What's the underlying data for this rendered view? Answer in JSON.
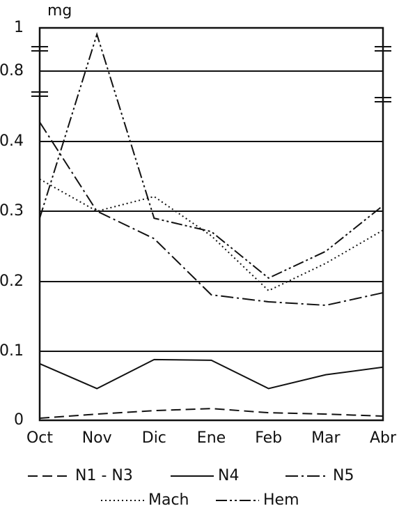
{
  "chart_data": {
    "type": "line",
    "y_label": "mg",
    "categories": [
      "Oct",
      "Nov",
      "Dic",
      "Ene",
      "Feb",
      "Mar",
      "Abr"
    ],
    "ylim": [
      0,
      1
    ],
    "yticks": [
      0,
      0.1,
      0.2,
      0.3,
      0.4,
      0.8,
      1
    ],
    "grid": true,
    "series": [
      {
        "name": "N1 - N3",
        "color": "#111111",
        "style": "dashed",
        "values": [
          0.003,
          0.009,
          0.014,
          0.017,
          0.011,
          0.009,
          0.006
        ]
      },
      {
        "name": "N4",
        "color": "#111111",
        "style": "solid",
        "values": [
          0.082,
          0.046,
          0.088,
          0.087,
          0.046,
          0.066,
          0.077
        ]
      },
      {
        "name": "N5",
        "color": "#111111",
        "style": "dashdot",
        "values": [
          0.51,
          0.3,
          0.261,
          0.181,
          0.171,
          0.166,
          0.184
        ]
      },
      {
        "name": "Mach",
        "color": "#111111",
        "style": "dotted",
        "values": [
          0.346,
          0.3,
          0.321,
          0.265,
          0.187,
          0.226,
          0.273
        ]
      },
      {
        "name": "Hem",
        "color": "#111111",
        "style": "dashdotdot",
        "values": [
          0.29,
          0.97,
          0.29,
          0.271,
          0.205,
          0.243,
          0.308
        ]
      }
    ]
  }
}
